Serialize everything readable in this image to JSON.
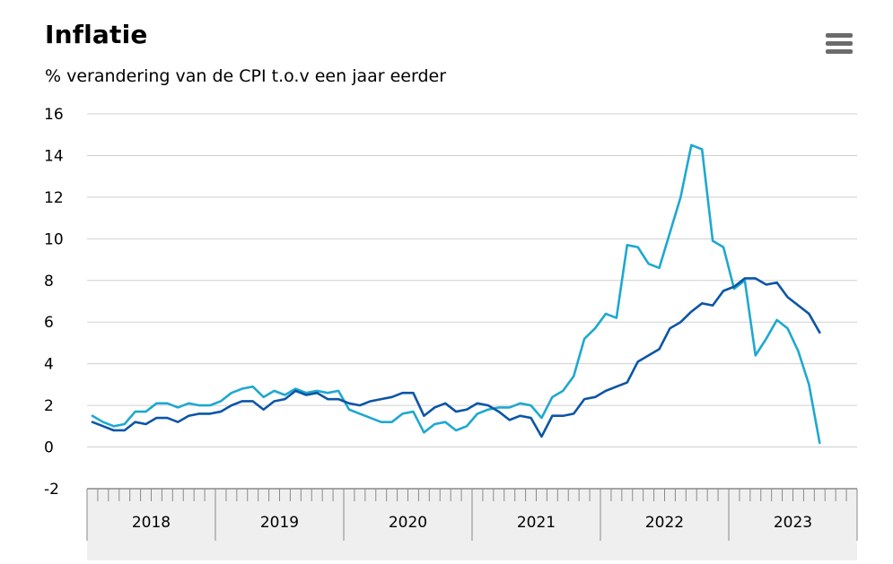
{
  "title": "Inflatie",
  "subtitle": "% verandering van de CPI t.o.v een jaar eerder",
  "menu_icon": "hamburger-menu-icon",
  "chart_data": {
    "type": "line",
    "title": "Inflatie",
    "subtitle": "% verandering van de CPI t.o.v een jaar eerder",
    "ylim": [
      -2,
      16
    ],
    "yticks": [
      16,
      14,
      12,
      10,
      8,
      6,
      4,
      2,
      0,
      -2
    ],
    "years": [
      "2018",
      "2019",
      "2020",
      "2021",
      "2022",
      "2023"
    ],
    "x_start": "2018-01",
    "grid": true,
    "colors": {
      "series_dark": "#0b55a6",
      "series_light": "#1ea8d0",
      "grid": "#cfcfcf",
      "axis_band": "#efefef"
    },
    "series": [
      {
        "values": [
          1.2,
          1.0,
          0.8,
          0.8,
          1.2,
          1.1,
          1.4,
          1.4,
          1.2,
          1.5,
          1.6,
          1.6,
          1.7,
          2.0,
          2.2,
          2.2,
          1.8,
          2.2,
          2.3,
          2.7,
          2.5,
          2.6,
          2.3,
          2.3,
          2.1,
          2.0,
          2.2,
          2.3,
          2.4,
          2.6,
          2.6,
          1.5,
          1.9,
          2.1,
          1.7,
          1.8,
          2.1,
          2.0,
          1.7,
          1.3,
          1.5,
          1.4,
          0.5,
          1.5,
          1.5,
          1.6,
          2.3,
          2.4,
          2.7,
          2.9,
          3.1,
          4.1,
          4.4,
          4.7,
          5.7,
          6.0,
          6.5,
          6.9,
          6.8,
          7.5,
          7.7,
          8.1,
          8.1,
          7.8,
          7.9,
          7.2,
          6.8,
          6.4,
          5.5
        ]
      },
      {
        "values": [
          1.5,
          1.2,
          1.0,
          1.1,
          1.7,
          1.7,
          2.1,
          2.1,
          1.9,
          2.1,
          2.0,
          2.0,
          2.2,
          2.6,
          2.8,
          2.9,
          2.4,
          2.7,
          2.5,
          2.8,
          2.6,
          2.7,
          2.6,
          2.7,
          1.8,
          1.6,
          1.4,
          1.2,
          1.2,
          1.6,
          1.7,
          0.7,
          1.1,
          1.2,
          0.8,
          1.0,
          1.6,
          1.8,
          1.9,
          1.9,
          2.1,
          2.0,
          1.4,
          2.4,
          2.7,
          3.4,
          5.2,
          5.7,
          6.4,
          6.2,
          9.7,
          9.6,
          8.8,
          8.6,
          10.3,
          12.0,
          14.5,
          14.3,
          9.9,
          9.6,
          7.6,
          8.0,
          4.4,
          5.2,
          6.1,
          5.7,
          4.6,
          3.0,
          0.2
        ]
      }
    ]
  }
}
